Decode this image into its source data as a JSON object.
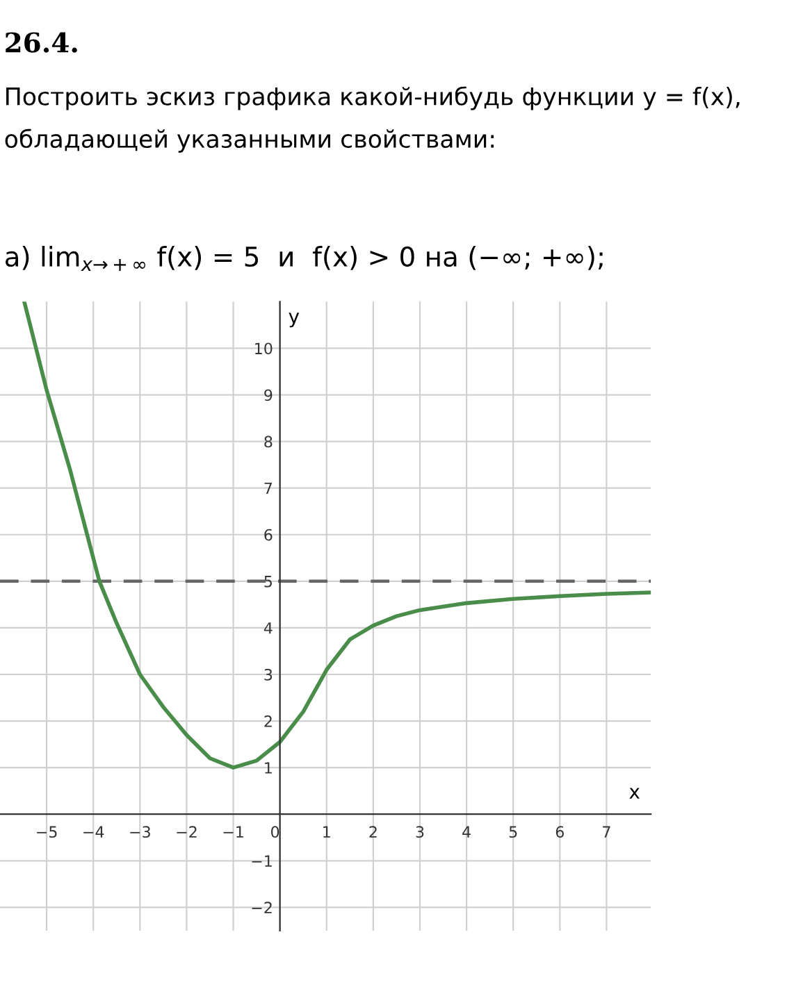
{
  "chart_data": {
    "type": "line",
    "title": "26.4.",
    "subtitle": "Построить эскиз графика какой-нибудь функции y = f(x), обладающей указанными свойствами:",
    "annotations": [
      "а) lim$_{x→+∞}$ f(x) = 5  и  f(x) > 0 на (−∞; +∞);"
    ],
    "xlabel": "x",
    "ylabel": "y",
    "x": [
      -5.48,
      -5,
      -4.5,
      -3.87,
      -3.5,
      -3,
      -2.5,
      -2,
      -1.5,
      -1,
      -0.5,
      0,
      0.5,
      1,
      1.5,
      2,
      2.5,
      3,
      4,
      5,
      6,
      7,
      7.95
    ],
    "series": [
      {
        "color": "#4a8c4a",
        "values": [
          11,
          9.1,
          7.4,
          5,
          4.1,
          3,
          2.3,
          1.7,
          1.2,
          1.0,
          1.15,
          1.55,
          2.2,
          3.1,
          3.75,
          4.05,
          4.25,
          4.38,
          4.53,
          4.62,
          4.68,
          4.73,
          4.76
        ]
      }
    ],
    "xlim": [
      -6,
      7.95
    ],
    "ylim": [
      -2.5,
      11
    ],
    "xticks": [
      -5,
      -4,
      -3,
      -2,
      -1,
      0,
      1,
      2,
      3,
      4,
      5,
      6,
      7
    ],
    "yticks": [
      -2,
      -1,
      1,
      2,
      3,
      4,
      5,
      6,
      7,
      8,
      9,
      10
    ],
    "ref_lines": [
      {
        "axis": "y",
        "value": 5,
        "color": "#666666",
        "line_style": "dashed"
      }
    ],
    "grid": true,
    "marker": "none",
    "line_style": "solid",
    "legend": false
  }
}
